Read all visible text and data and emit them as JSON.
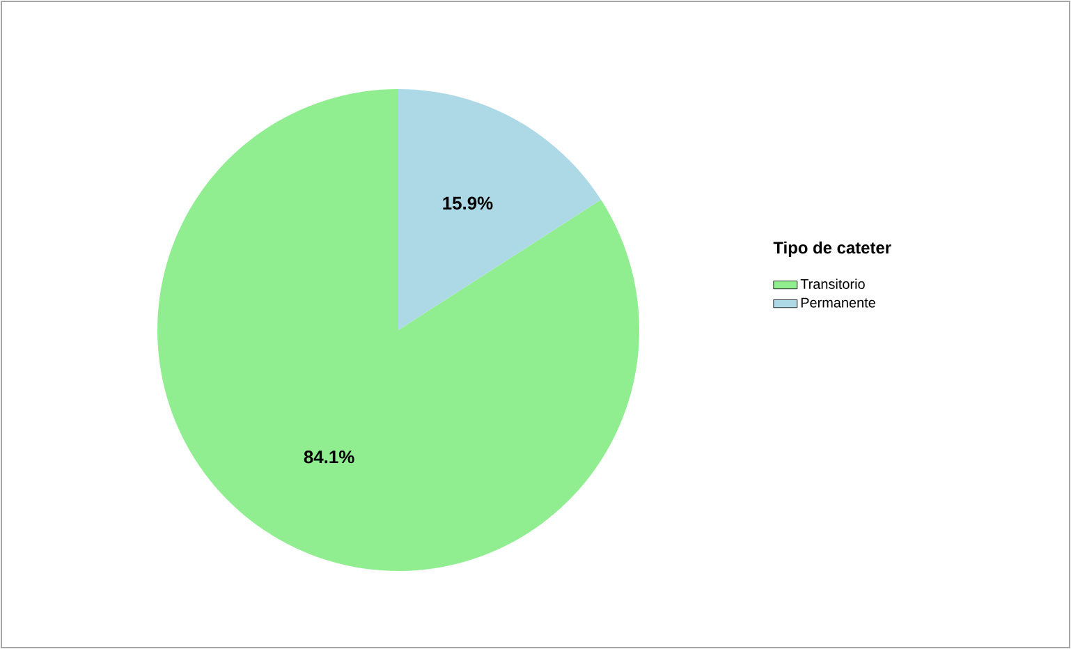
{
  "chart_data": {
    "type": "pie",
    "legend_title": "Tipo de cateter",
    "categories": [
      "Transitorio",
      "Permanente"
    ],
    "values": [
      84.1,
      15.9
    ],
    "colors": [
      "#90ee90",
      "#add8e6"
    ],
    "value_labels": [
      "84.1%",
      "15.9%"
    ],
    "legend": "right"
  }
}
